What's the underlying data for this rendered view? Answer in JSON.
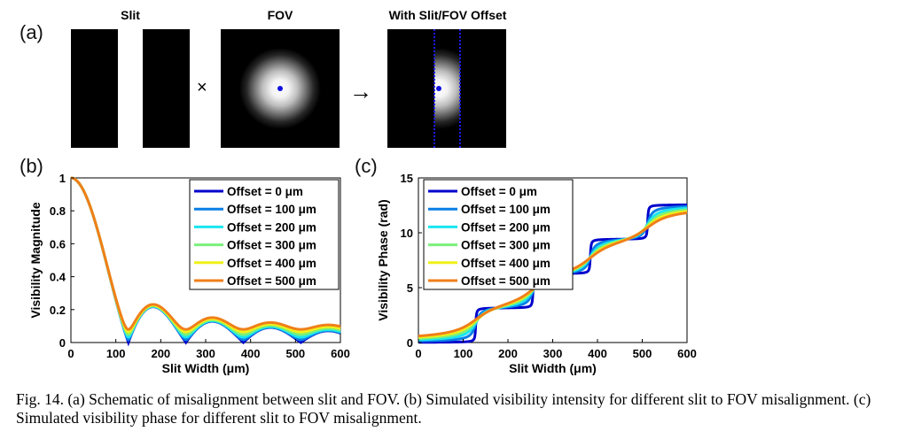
{
  "panel_a": {
    "label": "(a)",
    "titles": {
      "slit": "Slit",
      "fov": "FOV",
      "offset": "With Slit/FOV Offset"
    },
    "times_symbol": "×",
    "arrow_symbol": "→"
  },
  "caption": "Fig. 14. (a) Schematic of misalignment between slit and FOV. (b) Simulated visibility intensity for different slit to FOV misalignment. (c) Simulated visibility phase for different slit to FOV misalignment.",
  "legend_colors": [
    "#0000cc",
    "#0a7fe6",
    "#19e6f0",
    "#7af07a",
    "#f0f019",
    "#f07f19"
  ],
  "chart_data": [
    {
      "type": "line",
      "panel_label": "(b)",
      "xlabel": "Slit Width (μm)",
      "ylabel": "Visibility Magnitude",
      "xlim": [
        0,
        600
      ],
      "ylim": [
        0,
        1
      ],
      "xticks": [
        0,
        100,
        200,
        300,
        400,
        500,
        600
      ],
      "yticks": [
        0,
        0.2,
        0.4,
        0.6,
        0.8,
        1
      ],
      "ytick_labels": [
        "0",
        "0.2",
        "0.4",
        "0.6",
        "0.8",
        "1"
      ],
      "legend_position": "top-right",
      "series": [
        {
          "name": "Offset = 0 μm",
          "offset": 0
        },
        {
          "name": "Offset = 100 μm",
          "offset": 100
        },
        {
          "name": "Offset = 200 μm",
          "offset": 200
        },
        {
          "name": "Offset = 300 μm",
          "offset": 300
        },
        {
          "name": "Offset = 400 μm",
          "offset": 400
        },
        {
          "name": "Offset = 500 μm",
          "offset": 500
        }
      ],
      "approx_features": {
        "first_zero_um": 128,
        "second_zero_um": 256,
        "third_zero_um": 384,
        "fourth_zero_um": 512,
        "sidelobe_peak": 0.22,
        "offset500_floor": 0.08
      }
    },
    {
      "type": "line",
      "panel_label": "(c)",
      "xlabel": "Slit Width (μm)",
      "ylabel": "Visibility Phase  (rad)",
      "xlim": [
        0,
        600
      ],
      "ylim": [
        0,
        15
      ],
      "xticks": [
        0,
        100,
        200,
        300,
        400,
        500,
        600
      ],
      "yticks": [
        0,
        5,
        10,
        15
      ],
      "ytick_labels": [
        "0",
        "5",
        "10",
        "15"
      ],
      "legend_position": "top-left",
      "series": [
        {
          "name": "Offset = 0 μm",
          "offset": 0
        },
        {
          "name": "Offset = 100 μm",
          "offset": 100
        },
        {
          "name": "Offset = 200 μm",
          "offset": 200
        },
        {
          "name": "Offset = 300 μm",
          "offset": 300
        },
        {
          "name": "Offset = 400 μm",
          "offset": 400
        },
        {
          "name": "Offset = 500 μm",
          "offset": 500
        }
      ],
      "approx_features": {
        "step_positions_um": [
          128,
          256,
          384,
          512
        ],
        "step_size_rad": 3.14,
        "final_value_rad": 13.1
      }
    }
  ]
}
